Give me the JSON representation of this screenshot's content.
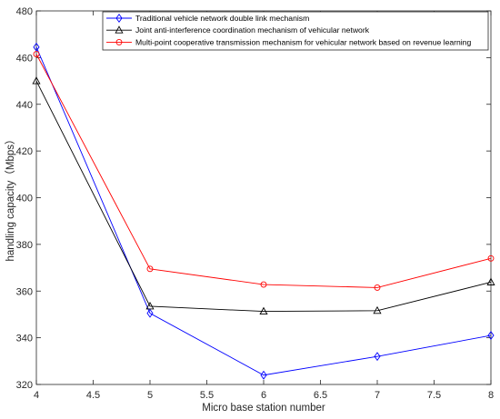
{
  "chart_data": {
    "type": "line",
    "xlabel": "Micro base station number",
    "ylabel": "handling capacity（Mbps）",
    "xlim": [
      4,
      8
    ],
    "ylim": [
      320,
      480
    ],
    "x_ticks": [
      "4",
      "4.5",
      "5",
      "5.5",
      "6",
      "6.5",
      "7",
      "7.5",
      "8"
    ],
    "y_ticks": [
      "320",
      "340",
      "360",
      "380",
      "400",
      "420",
      "440",
      "460",
      "480"
    ],
    "grid": false,
    "legend_position": "top-right",
    "x": [
      4,
      5,
      6,
      7,
      8
    ],
    "series": [
      {
        "name": "Traditional vehicle network double link mechanism",
        "values": [
          464.5,
          350.5,
          324,
          332,
          341
        ],
        "color": "#0000ff",
        "marker": "diamond"
      },
      {
        "name": "Joint anti-interference coordination mechanism of vehicular network",
        "values": [
          450,
          353.5,
          351.3,
          351.6,
          363.8
        ],
        "color": "#000000",
        "marker": "triangle"
      },
      {
        "name": "Multi-point cooperative transmission mechanism for vehicular network based on revenue learning",
        "values": [
          461.5,
          369.5,
          362.8,
          361.5,
          374
        ],
        "color": "#ff0000",
        "marker": "circle"
      }
    ]
  }
}
